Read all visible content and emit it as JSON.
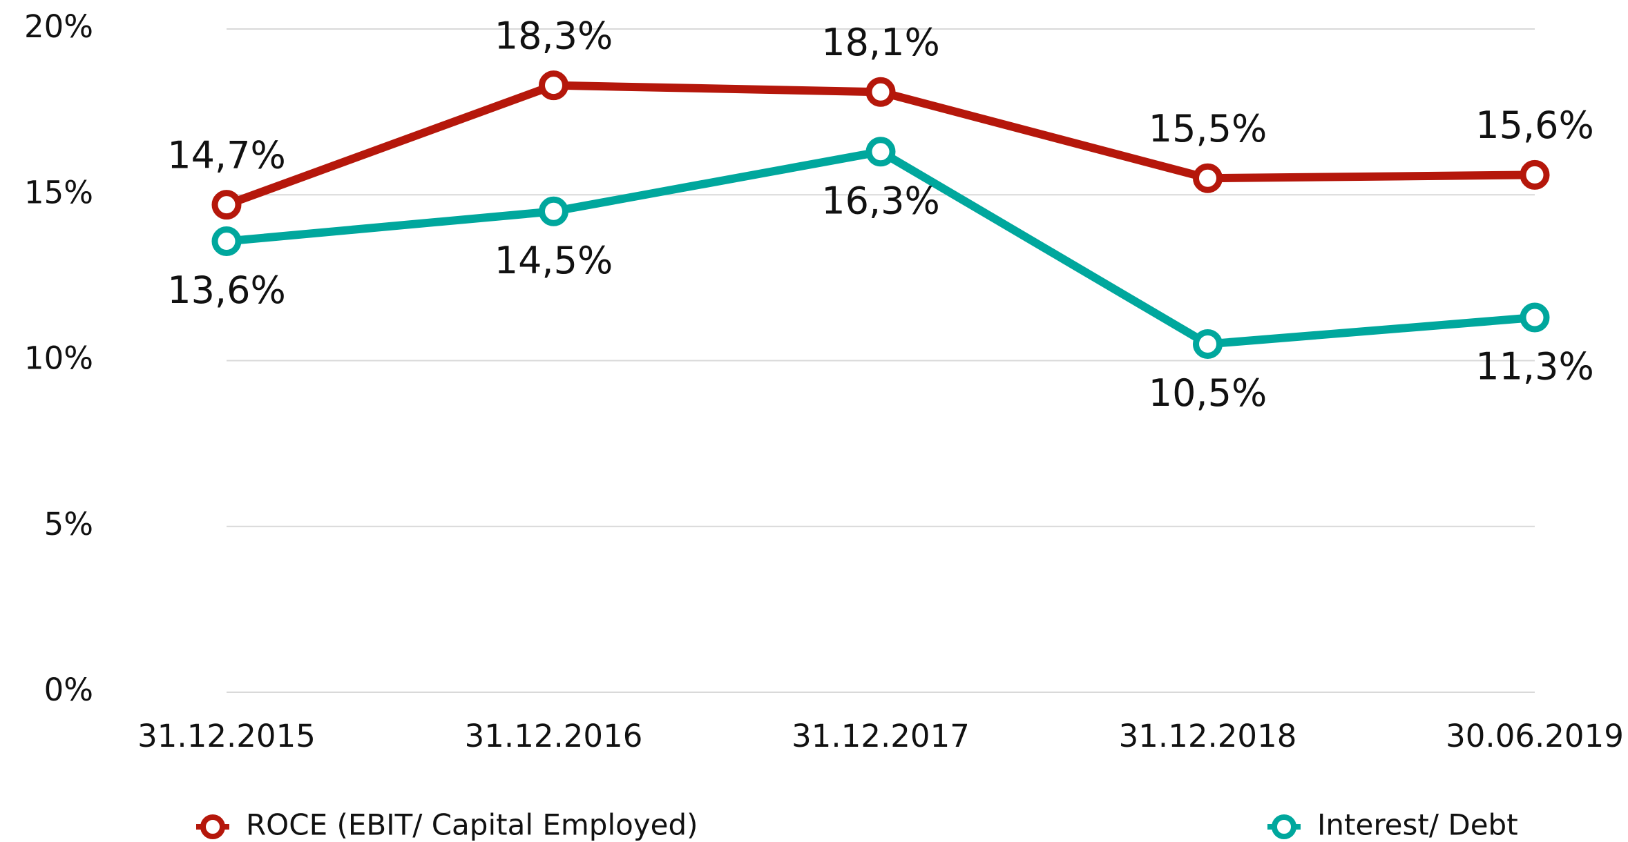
{
  "chart_data": {
    "type": "line",
    "categories": [
      "31.12.2015",
      "31.12.2016",
      "31.12.2017",
      "31.12.2018",
      "30.06.2019"
    ],
    "series": [
      {
        "name": "ROCE (EBIT/ Capital Employed)",
        "color": "#b5170b",
        "values": [
          14.7,
          18.3,
          18.1,
          15.5,
          15.6
        ],
        "value_labels": [
          "14,7%",
          "18,3%",
          "18,1%",
          "15,5%",
          "15,6%"
        ]
      },
      {
        "name": "Interest/ Debt",
        "color": "#00a79d",
        "values": [
          13.6,
          14.5,
          16.3,
          10.5,
          11.3
        ],
        "value_labels": [
          "13,6%",
          "14,5%",
          "16,3%",
          "10,5%",
          "11,3%"
        ]
      }
    ],
    "ylim": [
      0,
      20
    ],
    "yticks": [
      {
        "value": 0,
        "label": "0%"
      },
      {
        "value": 5,
        "label": "5%"
      },
      {
        "value": 10,
        "label": "10%"
      },
      {
        "value": 15,
        "label": "15%"
      },
      {
        "value": 20,
        "label": "20%"
      }
    ],
    "grid": true
  }
}
